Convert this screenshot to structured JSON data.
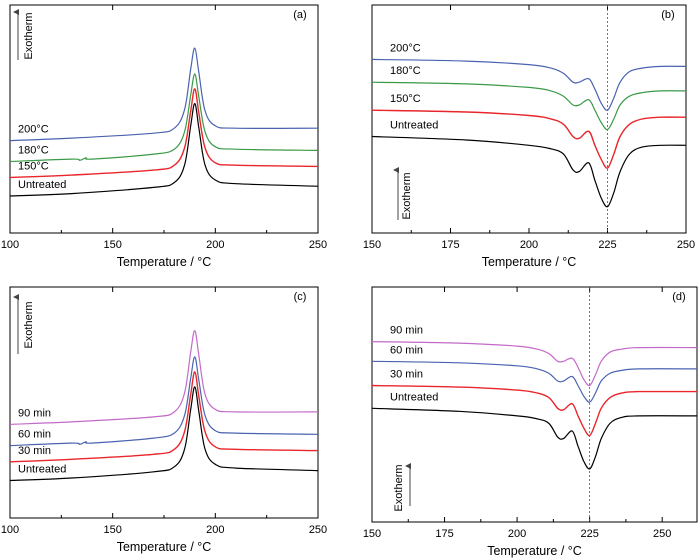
{
  "figure": {
    "colors": {
      "black": "#000000",
      "red": "#e8262b",
      "green": "#3a9a47",
      "blue": "#4a63b0",
      "magenta": "#c36ac8",
      "marker": "#555555"
    }
  },
  "chart_data": [
    {
      "panel_label": "(a)",
      "type": "line",
      "xlabel": "Temperature / °C",
      "ylabel": "Exotherm",
      "xlim": [
        100,
        250
      ],
      "xticks": [
        "100",
        "150",
        "200",
        "250"
      ],
      "y_ticks": "none",
      "grid": false,
      "legend": "inline-labels-left",
      "reference_line_x": null,
      "series": [
        {
          "name": "Untreated",
          "color": "black",
          "x": [
            100,
            130,
            170,
            180,
            185,
            188,
            190,
            192,
            195,
            200,
            210,
            250
          ],
          "y": [
            0.05,
            0.07,
            0.12,
            0.16,
            0.3,
            0.62,
            0.8,
            0.6,
            0.3,
            0.18,
            0.15,
            0.13
          ]
        },
        {
          "name": "150°C",
          "color": "red",
          "x": [
            100,
            130,
            170,
            180,
            185,
            188,
            190,
            192,
            195,
            200,
            210,
            250
          ],
          "y": [
            0.2,
            0.22,
            0.26,
            0.3,
            0.44,
            0.74,
            0.92,
            0.72,
            0.44,
            0.32,
            0.3,
            0.29
          ]
        },
        {
          "name": "180°C",
          "color": "green",
          "x": [
            100,
            130,
            134,
            137,
            140,
            170,
            180,
            185,
            188,
            190,
            192,
            195,
            200,
            210,
            250
          ],
          "y": [
            0.33,
            0.35,
            0.34,
            0.36,
            0.35,
            0.39,
            0.43,
            0.57,
            0.87,
            1.04,
            0.85,
            0.57,
            0.45,
            0.43,
            0.42
          ]
        },
        {
          "name": "200°C",
          "color": "blue",
          "x": [
            100,
            130,
            170,
            180,
            185,
            188,
            190,
            192,
            195,
            200,
            210,
            250
          ],
          "y": [
            0.5,
            0.52,
            0.56,
            0.6,
            0.75,
            1.08,
            1.25,
            1.05,
            0.74,
            0.62,
            0.6,
            0.6
          ]
        }
      ]
    },
    {
      "panel_label": "(b)",
      "type": "line",
      "xlabel": "Temperature / °C",
      "ylabel": "Exotherm",
      "xlim": [
        150,
        250
      ],
      "xticks": [
        "150",
        "175",
        "200",
        "225",
        "250"
      ],
      "y_ticks": "none",
      "grid": false,
      "legend": "inline-labels-left",
      "reference_line_x": 225,
      "series": [
        {
          "name": "Untreated",
          "color": "black",
          "x": [
            150,
            180,
            200,
            207,
            211,
            214,
            216,
            219,
            221,
            223,
            225,
            227,
            229,
            232,
            236,
            242,
            250
          ],
          "y": [
            0.4,
            0.38,
            0.35,
            0.33,
            0.3,
            0.21,
            0.2,
            0.25,
            0.15,
            0.05,
            0.0,
            0.08,
            0.2,
            0.3,
            0.34,
            0.35,
            0.35
          ]
        },
        {
          "name": "150°C",
          "color": "red",
          "x": [
            150,
            180,
            200,
            207,
            211,
            214,
            216,
            219,
            221,
            223,
            225,
            227,
            229,
            232,
            236,
            242,
            250
          ],
          "y": [
            0.55,
            0.54,
            0.52,
            0.5,
            0.47,
            0.4,
            0.39,
            0.43,
            0.35,
            0.27,
            0.22,
            0.3,
            0.4,
            0.47,
            0.5,
            0.51,
            0.51
          ]
        },
        {
          "name": "180°C",
          "color": "green",
          "x": [
            150,
            180,
            200,
            207,
            211,
            214,
            216,
            219,
            221,
            223,
            225,
            227,
            229,
            232,
            236,
            242,
            250
          ],
          "y": [
            0.71,
            0.7,
            0.68,
            0.66,
            0.63,
            0.58,
            0.58,
            0.61,
            0.55,
            0.48,
            0.44,
            0.5,
            0.58,
            0.63,
            0.65,
            0.66,
            0.66
          ]
        },
        {
          "name": "200°C",
          "color": "blue",
          "x": [
            150,
            180,
            200,
            207,
            211,
            214,
            216,
            219,
            221,
            223,
            225,
            227,
            229,
            232,
            236,
            242,
            250
          ],
          "y": [
            0.84,
            0.83,
            0.81,
            0.79,
            0.76,
            0.71,
            0.71,
            0.73,
            0.67,
            0.59,
            0.55,
            0.62,
            0.71,
            0.77,
            0.79,
            0.8,
            0.8
          ]
        }
      ]
    },
    {
      "panel_label": "(c)",
      "type": "line",
      "xlabel": "Temperature / °C",
      "ylabel": "Exotherm",
      "xlim": [
        100,
        250
      ],
      "xticks": [
        "100",
        "150",
        "200",
        "250"
      ],
      "y_ticks": "none",
      "grid": false,
      "legend": "inline-labels-left",
      "reference_line_x": null,
      "series": [
        {
          "name": "Untreated",
          "color": "black",
          "x": [
            100,
            130,
            170,
            180,
            185,
            188,
            190,
            192,
            195,
            200,
            210,
            250
          ],
          "y": [
            0.05,
            0.07,
            0.12,
            0.16,
            0.3,
            0.62,
            0.8,
            0.6,
            0.3,
            0.18,
            0.15,
            0.13
          ]
        },
        {
          "name": "30 min",
          "color": "red",
          "x": [
            100,
            130,
            170,
            180,
            185,
            188,
            190,
            192,
            195,
            200,
            210,
            250
          ],
          "y": [
            0.2,
            0.22,
            0.26,
            0.3,
            0.44,
            0.74,
            0.92,
            0.72,
            0.44,
            0.32,
            0.3,
            0.29
          ]
        },
        {
          "name": "60 min",
          "color": "blue",
          "x": [
            100,
            130,
            134,
            137,
            140,
            170,
            180,
            185,
            188,
            190,
            192,
            195,
            200,
            210,
            250
          ],
          "y": [
            0.33,
            0.35,
            0.34,
            0.36,
            0.35,
            0.39,
            0.43,
            0.57,
            0.87,
            1.04,
            0.85,
            0.57,
            0.45,
            0.43,
            0.42
          ]
        },
        {
          "name": "90 min",
          "color": "magenta",
          "x": [
            100,
            130,
            170,
            180,
            185,
            188,
            190,
            192,
            195,
            200,
            210,
            250
          ],
          "y": [
            0.5,
            0.52,
            0.56,
            0.6,
            0.75,
            1.08,
            1.25,
            1.05,
            0.74,
            0.62,
            0.6,
            0.6
          ]
        }
      ]
    },
    {
      "panel_label": "(d)",
      "type": "line",
      "xlabel": "Temperature / °C",
      "ylabel": "Exotherm",
      "xlim": [
        150,
        262
      ],
      "xticks": [
        "150",
        "175",
        "200",
        "225",
        "250"
      ],
      "y_ticks": "none",
      "grid": false,
      "legend": "inline-labels-left",
      "reference_line_x": 225,
      "series": [
        {
          "name": "Untreated",
          "color": "black",
          "x": [
            150,
            180,
            200,
            207,
            211,
            214,
            216,
            219,
            221,
            223,
            225,
            227,
            229,
            232,
            236,
            242,
            262
          ],
          "y": [
            0.4,
            0.38,
            0.35,
            0.33,
            0.3,
            0.21,
            0.2,
            0.25,
            0.15,
            0.05,
            0.0,
            0.08,
            0.2,
            0.3,
            0.34,
            0.35,
            0.35
          ]
        },
        {
          "name": "30 min",
          "color": "red",
          "x": [
            150,
            180,
            200,
            207,
            211,
            214,
            216,
            219,
            221,
            223,
            225,
            227,
            229,
            232,
            236,
            242,
            262
          ],
          "y": [
            0.55,
            0.54,
            0.52,
            0.5,
            0.47,
            0.4,
            0.39,
            0.43,
            0.35,
            0.27,
            0.22,
            0.3,
            0.4,
            0.47,
            0.5,
            0.51,
            0.51
          ]
        },
        {
          "name": "60 min",
          "color": "blue",
          "x": [
            150,
            180,
            200,
            207,
            211,
            214,
            216,
            219,
            221,
            223,
            225,
            227,
            229,
            232,
            236,
            242,
            262
          ],
          "y": [
            0.71,
            0.7,
            0.68,
            0.66,
            0.63,
            0.58,
            0.58,
            0.61,
            0.55,
            0.48,
            0.44,
            0.5,
            0.58,
            0.63,
            0.65,
            0.66,
            0.66
          ]
        },
        {
          "name": "90 min",
          "color": "magenta",
          "x": [
            150,
            180,
            200,
            207,
            211,
            214,
            216,
            219,
            221,
            223,
            225,
            227,
            229,
            232,
            236,
            242,
            262
          ],
          "y": [
            0.84,
            0.83,
            0.81,
            0.79,
            0.76,
            0.71,
            0.71,
            0.73,
            0.67,
            0.59,
            0.55,
            0.62,
            0.71,
            0.77,
            0.79,
            0.8,
            0.8
          ]
        }
      ]
    }
  ]
}
